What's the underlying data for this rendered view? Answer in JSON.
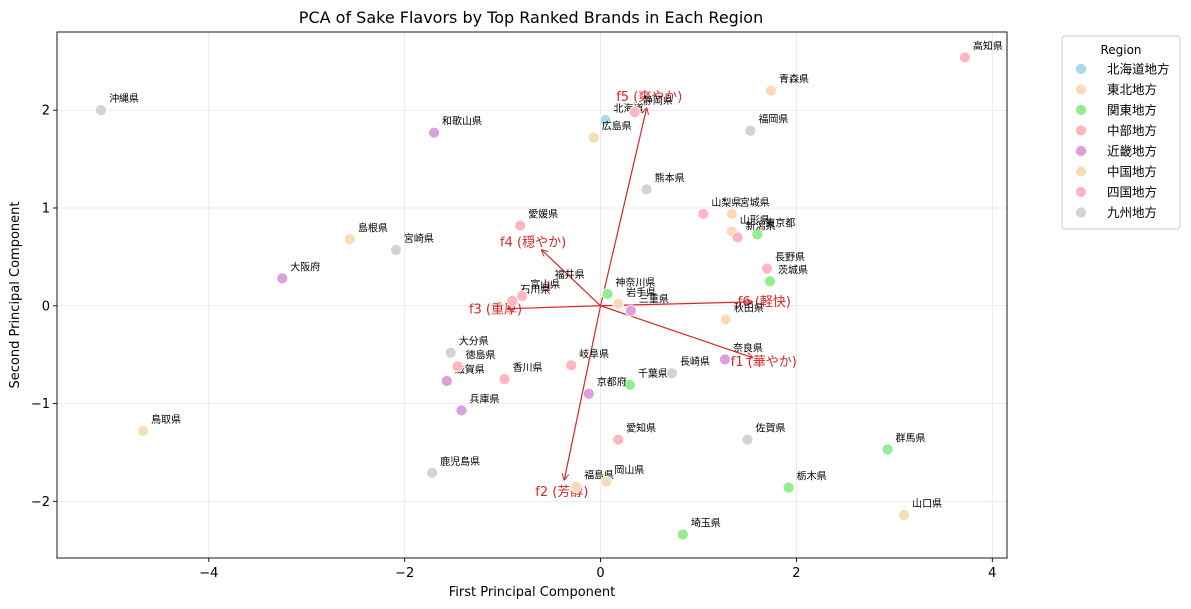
{
  "chart_data": {
    "type": "scatter",
    "title": "PCA of Sake Flavors by Top Ranked Brands in Each Region",
    "xlabel": "First Principal Component",
    "ylabel": "Second Principal Component",
    "xlim": [
      -5.55,
      4.15
    ],
    "ylim": [
      -2.58,
      2.8
    ],
    "xticks": [
      {
        "v": -4,
        "label": "−4"
      },
      {
        "v": -2,
        "label": "−2"
      },
      {
        "v": 0,
        "label": "0"
      },
      {
        "v": 2,
        "label": "2"
      },
      {
        "v": 4,
        "label": "4"
      }
    ],
    "yticks": [
      {
        "v": -2,
        "label": "−2"
      },
      {
        "v": -1,
        "label": "−1"
      },
      {
        "v": 0,
        "label": "0"
      },
      {
        "v": 1,
        "label": "1"
      },
      {
        "v": 2,
        "label": "2"
      }
    ],
    "grid": true,
    "legend": {
      "title": "Region",
      "placement": "outside-top-right"
    },
    "regions": [
      {
        "name": "北海道地方",
        "color": "#add8e6"
      },
      {
        "name": "東北地方",
        "color": "#ffdab9"
      },
      {
        "name": "関東地方",
        "color": "#90ee90"
      },
      {
        "name": "中部地方",
        "color": "#ffb6c1"
      },
      {
        "name": "近畿地方",
        "color": "#dda0dd"
      },
      {
        "name": "中国地方",
        "color": "#f5deb3"
      },
      {
        "name": "四国地方",
        "color": "#ffb6c1"
      },
      {
        "name": "九州地方",
        "color": "#d3d3d3"
      }
    ],
    "points": [
      {
        "label": "北海道",
        "region": 0,
        "x": 0.05,
        "y": 1.9
      },
      {
        "label": "青森県",
        "region": 1,
        "x": 1.74,
        "y": 2.2
      },
      {
        "label": "宮城県",
        "region": 1,
        "x": 1.34,
        "y": 0.94
      },
      {
        "label": "山形県",
        "region": 1,
        "x": 1.34,
        "y": 0.76
      },
      {
        "label": "岩手県",
        "region": 1,
        "x": 0.18,
        "y": 0.02
      },
      {
        "label": "秋田県",
        "region": 1,
        "x": 1.28,
        "y": -0.14
      },
      {
        "label": "福島県",
        "region": 1,
        "x": -0.25,
        "y": -1.85
      },
      {
        "label": "東京都",
        "region": 2,
        "x": 1.6,
        "y": 0.73
      },
      {
        "label": "茨城県",
        "region": 2,
        "x": 1.73,
        "y": 0.25
      },
      {
        "label": "神奈川県",
        "region": 2,
        "x": 0.07,
        "y": 0.12
      },
      {
        "label": "千葉県",
        "region": 2,
        "x": 0.3,
        "y": -0.81
      },
      {
        "label": "群馬県",
        "region": 2,
        "x": 2.93,
        "y": -1.47
      },
      {
        "label": "栃木県",
        "region": 2,
        "x": 1.92,
        "y": -1.86
      },
      {
        "label": "埼玉県",
        "region": 2,
        "x": 0.84,
        "y": -2.34
      },
      {
        "label": "静岡県",
        "region": 3,
        "x": 0.35,
        "y": 1.98
      },
      {
        "label": "山梨県",
        "region": 3,
        "x": 1.05,
        "y": 0.94
      },
      {
        "label": "新潟県",
        "region": 3,
        "x": 1.4,
        "y": 0.7
      },
      {
        "label": "長野県",
        "region": 3,
        "x": 1.7,
        "y": 0.38
      },
      {
        "label": "福井県",
        "region": 3,
        "x": -0.55,
        "y": 0.2
      },
      {
        "label": "石川県",
        "region": 3,
        "x": -0.9,
        "y": 0.05
      },
      {
        "label": "富山県",
        "region": 3,
        "x": -0.8,
        "y": 0.1
      },
      {
        "label": "岐阜県",
        "region": 3,
        "x": -0.3,
        "y": -0.61
      },
      {
        "label": "愛知県",
        "region": 3,
        "x": 0.18,
        "y": -1.37
      },
      {
        "label": "和歌山県",
        "region": 4,
        "x": -1.7,
        "y": 1.77
      },
      {
        "label": "大阪府",
        "region": 4,
        "x": -3.25,
        "y": 0.28
      },
      {
        "label": "三重県",
        "region": 4,
        "x": 0.31,
        "y": -0.05
      },
      {
        "label": "奈良県",
        "region": 4,
        "x": 1.27,
        "y": -0.55
      },
      {
        "label": "滋賀県",
        "region": 4,
        "x": -1.57,
        "y": -0.77
      },
      {
        "label": "京都府",
        "region": 4,
        "x": -0.12,
        "y": -0.9
      },
      {
        "label": "兵庫県",
        "region": 4,
        "x": -1.42,
        "y": -1.07
      },
      {
        "label": "広島県",
        "region": 5,
        "x": -0.07,
        "y": 1.72
      },
      {
        "label": "島根県",
        "region": 5,
        "x": -2.56,
        "y": 0.68
      },
      {
        "label": "鳥取県",
        "region": 5,
        "x": -4.67,
        "y": -1.28
      },
      {
        "label": "岡山県",
        "region": 5,
        "x": 0.06,
        "y": -1.8
      },
      {
        "label": "山口県",
        "region": 5,
        "x": 3.1,
        "y": -2.14
      },
      {
        "label": "高知県",
        "region": 6,
        "x": 3.72,
        "y": 2.54
      },
      {
        "label": "愛媛県",
        "region": 6,
        "x": -0.82,
        "y": 0.82
      },
      {
        "label": "徳島県",
        "region": 6,
        "x": -1.46,
        "y": -0.62
      },
      {
        "label": "香川県",
        "region": 6,
        "x": -0.98,
        "y": -0.75
      },
      {
        "label": "沖縄県",
        "region": 7,
        "x": -5.1,
        "y": 2.0
      },
      {
        "label": "福岡県",
        "region": 7,
        "x": 1.53,
        "y": 1.79
      },
      {
        "label": "熊本県",
        "region": 7,
        "x": 0.47,
        "y": 1.19
      },
      {
        "label": "宮崎県",
        "region": 7,
        "x": -2.09,
        "y": 0.57
      },
      {
        "label": "大分県",
        "region": 7,
        "x": -1.53,
        "y": -0.48
      },
      {
        "label": "長崎県",
        "region": 7,
        "x": 0.73,
        "y": -0.69
      },
      {
        "label": "佐賀県",
        "region": 7,
        "x": 1.5,
        "y": -1.37
      },
      {
        "label": "鹿児島県",
        "region": 7,
        "x": -1.72,
        "y": -1.71
      }
    ],
    "vectors": [
      {
        "label": "f1 (華やか)",
        "x": 1.55,
        "y": -0.53
      },
      {
        "label": "f2 (芳醇)",
        "x": -0.37,
        "y": -1.78
      },
      {
        "label": "f3 (重厚)",
        "x": -0.95,
        "y": -0.03
      },
      {
        "label": "f4 (穏やか)",
        "x": -0.6,
        "y": 0.57
      },
      {
        "label": "f5 (爽やか)",
        "x": 0.47,
        "y": 2.02
      },
      {
        "label": "f6 (軽快)",
        "x": 1.55,
        "y": 0.04
      }
    ]
  }
}
